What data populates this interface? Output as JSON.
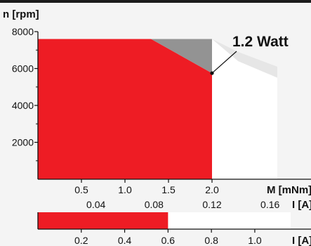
{
  "chart_data": {
    "type": "area",
    "ylabel": "n [rpm]",
    "yticks": [
      "8000",
      "6000",
      "4000",
      "2000"
    ],
    "ylim": [
      0,
      8000
    ],
    "x_torque": {
      "label": "M [mNm]",
      "ticks": [
        "0.5",
        "1.0",
        "1.5",
        "2.0"
      ],
      "xlim": [
        0,
        2.0
      ]
    },
    "x_current": {
      "label": "I [A]",
      "ticks": [
        "0.04",
        "0.08",
        "0.12",
        "0.16"
      ]
    },
    "continuous_operation_region": {
      "color": "#ee1c24",
      "boundary": [
        {
          "M": 0.0,
          "n": 7600
        },
        {
          "M": 1.3,
          "n": 7600
        },
        {
          "M": 2.0,
          "n": 5750
        },
        {
          "M": 2.0,
          "n": 0
        },
        {
          "M": 0.0,
          "n": 0
        }
      ]
    },
    "power_limit_region": {
      "color": "#939393",
      "boundary": [
        {
          "M": 1.3,
          "n": 7600
        },
        {
          "M": 2.0,
          "n": 7600
        },
        {
          "M": 2.0,
          "n": 5750
        }
      ]
    },
    "short_term_operation_region": {
      "color": "#ffffff",
      "boundary": [
        {
          "M": 2.0,
          "n": 7600
        },
        {
          "M": 2.3,
          "n": 6400
        },
        {
          "M": 2.75,
          "n": 5500
        },
        {
          "M": 2.75,
          "n": 0
        },
        {
          "M": 2.0,
          "n": 0
        }
      ]
    },
    "annotation": {
      "text": "1.2 Watt",
      "M": 2.0,
      "n": 5750
    },
    "secondary_scale": {
      "label": "I [A]",
      "ticks": [
        "0.2",
        "0.4",
        "0.6",
        "0.8",
        "1.0"
      ],
      "continuous_fill": 0.6,
      "fill_color": "#ee1c24"
    }
  }
}
